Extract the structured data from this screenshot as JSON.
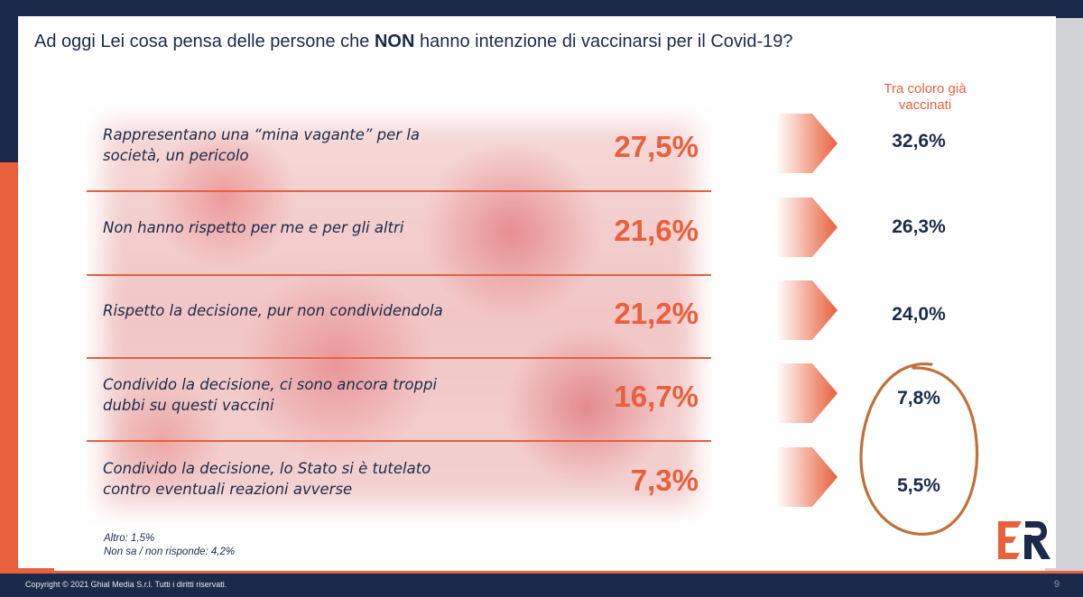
{
  "title_pre": "Ad oggi Lei cosa pensa delle persone che ",
  "title_bold": "NON",
  "title_post": " hanno intenzione di vaccinarsi per il Covid-19?",
  "vaccinated_header_line1": "Tra coloro già",
  "vaccinated_header_line2": "vaccinati",
  "chart_data": {
    "type": "table",
    "title": "Ad oggi Lei cosa pensa delle persone che NON hanno intenzione di vaccinarsi per il Covid-19?",
    "rows": [
      {
        "label_line1": "Rappresentano una “mina vagante” per la",
        "label_line2": "società, un pericolo",
        "total": 27.5,
        "total_label": "27,5%",
        "vaccinated": 32.6,
        "vaccinated_label": "32,6%"
      },
      {
        "label_line1": "Non hanno rispetto per me e per gli altri",
        "label_line2": "",
        "total": 21.6,
        "total_label": "21,6%",
        "vaccinated": 26.3,
        "vaccinated_label": "26,3%"
      },
      {
        "label_line1": "Rispetto la decisione, pur non condividendola",
        "label_line2": "",
        "total": 21.2,
        "total_label": "21,2%",
        "vaccinated": 24.0,
        "vaccinated_label": "24,0%"
      },
      {
        "label_line1": "Condivido la decisione, ci sono ancora troppi",
        "label_line2": "dubbi su questi vaccini",
        "total": 16.7,
        "total_label": "16,7%",
        "vaccinated": 7.8,
        "vaccinated_label": "7,8%"
      },
      {
        "label_line1": "Condivido la decisione, lo Stato si è tutelato",
        "label_line2": "contro eventuali reazioni avverse",
        "total": 7.3,
        "total_label": "7,3%",
        "vaccinated": 5.5,
        "vaccinated_label": "5,5%"
      }
    ],
    "highlight": "circled vaccinated values for last two rows"
  },
  "notes": {
    "altro": "Altro: 1,5%",
    "non_sa": "Non sa / non risponde: 4,2%"
  },
  "footer": {
    "copyright": "Copyright © 2021 Ghial Media S.r.l. Tutti i diritti riservati.",
    "page": "9"
  },
  "logo_text": "ER",
  "colors": {
    "navy": "#1b2a4a",
    "orange": "#e8603c",
    "circle": "#c0713a"
  },
  "icons": {
    "arrow": "chevron-arrow-icon",
    "logo": "er-logo-icon"
  }
}
